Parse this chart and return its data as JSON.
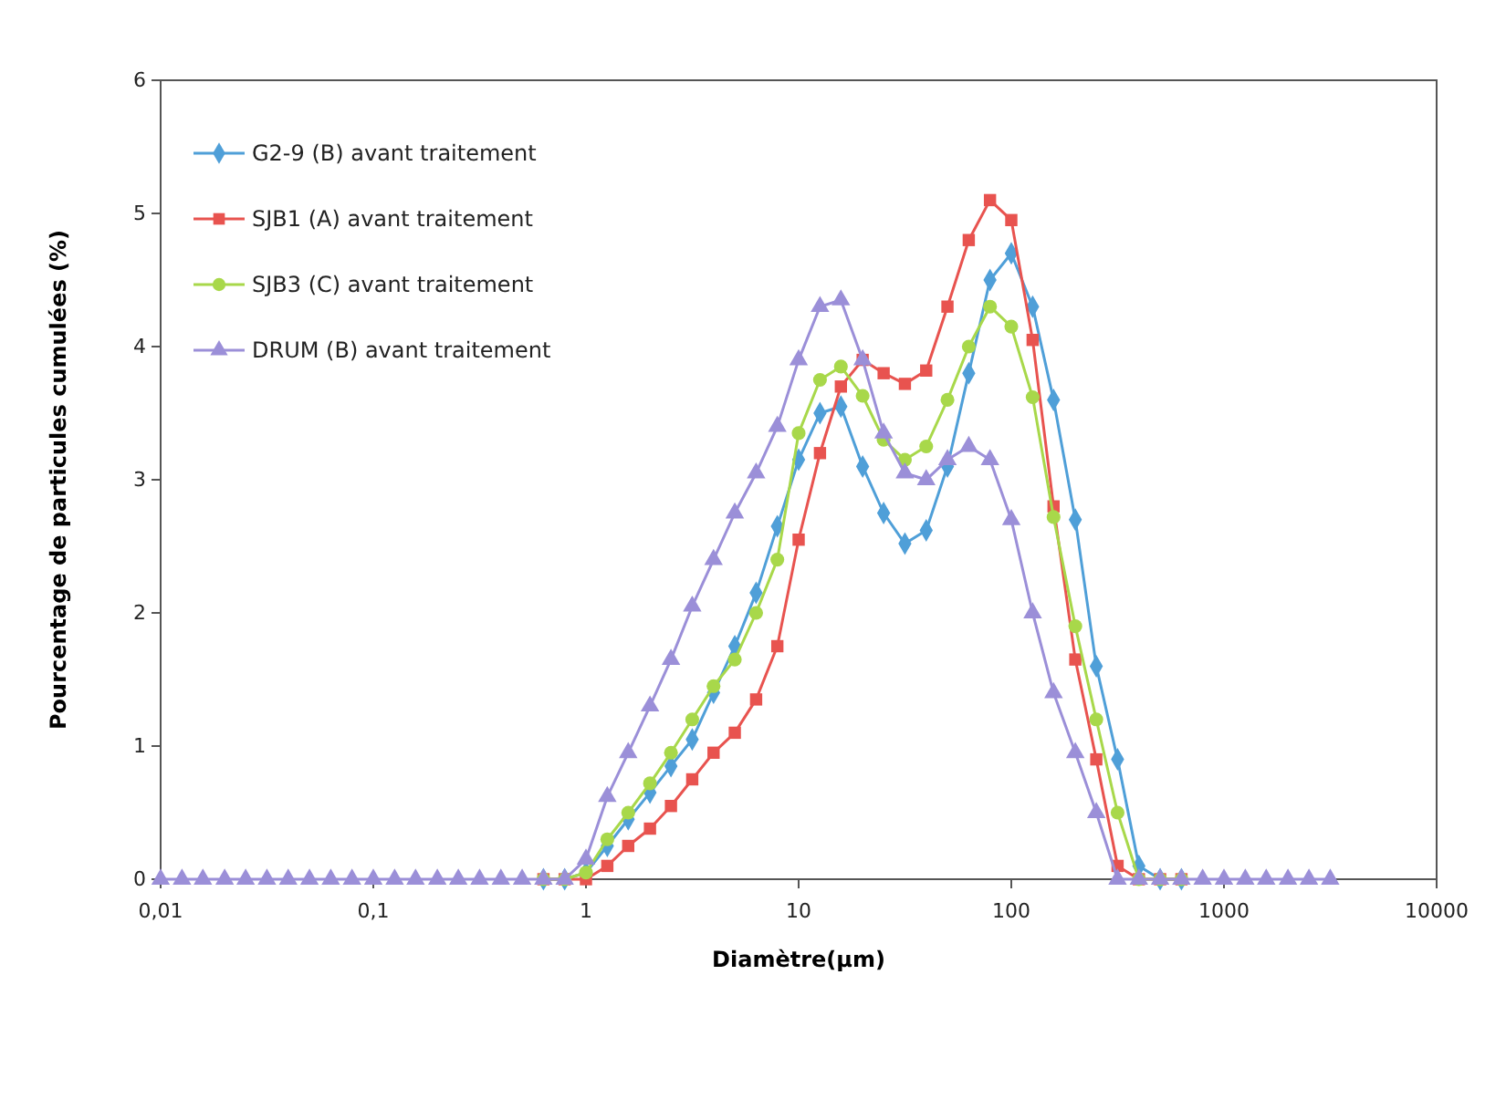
{
  "chart_data": {
    "type": "line",
    "xlabel": "Diamètre(μm)",
    "ylabel": "Pourcentage de particules cumulées (%)",
    "log": "x",
    "xlim": [
      0.01,
      10000
    ],
    "xticks": [
      {
        "value": 0.01,
        "label": "0,01"
      },
      {
        "value": 0.1,
        "label": "0,1"
      },
      1,
      10,
      100,
      1000,
      10000
    ],
    "ylim": [
      0,
      6
    ],
    "yticks": [
      0,
      1,
      2,
      3,
      4,
      5,
      6
    ],
    "grid": false,
    "legend": "top left",
    "line_style": "solid",
    "x": [
      0.01,
      0.0126,
      0.0158,
      0.02,
      0.0251,
      0.0316,
      0.0398,
      0.0501,
      0.0631,
      0.0794,
      0.1,
      0.126,
      0.158,
      0.2,
      0.251,
      0.316,
      0.398,
      0.501,
      0.631,
      0.794,
      1,
      1.26,
      1.58,
      2,
      2.51,
      3.16,
      3.98,
      5.01,
      6.31,
      7.94,
      10,
      12.6,
      15.8,
      20,
      25.1,
      31.6,
      39.8,
      50.1,
      63.1,
      79.4,
      100,
      126,
      158,
      200,
      251,
      316,
      398,
      501,
      631,
      794,
      1000,
      1260,
      1580,
      2000,
      2510,
      3160
    ],
    "series": [
      {
        "name": "G2-9 (B) avant traitement",
        "color": "#4f9fd8",
        "marker": "diamond",
        "values": [
          null,
          null,
          null,
          null,
          null,
          null,
          null,
          null,
          null,
          null,
          null,
          null,
          null,
          null,
          null,
          null,
          null,
          null,
          0,
          0,
          0.05,
          0.25,
          0.45,
          0.65,
          0.85,
          1.05,
          1.4,
          1.75,
          2.15,
          2.65,
          3.15,
          3.5,
          3.55,
          3.1,
          2.75,
          2.52,
          2.62,
          3.1,
          3.8,
          4.5,
          4.7,
          4.3,
          3.6,
          2.7,
          1.6,
          0.9,
          0.1,
          0,
          0,
          null,
          null,
          null,
          null,
          null,
          null,
          null
        ]
      },
      {
        "name": "SJB1 (A) avant traitement",
        "color": "#e8534f",
        "marker": "square",
        "values": [
          null,
          null,
          null,
          null,
          null,
          null,
          null,
          null,
          null,
          null,
          null,
          null,
          null,
          null,
          null,
          null,
          null,
          null,
          0,
          0,
          0,
          0.1,
          0.25,
          0.38,
          0.55,
          0.75,
          0.95,
          1.1,
          1.35,
          1.75,
          2.55,
          3.2,
          3.7,
          3.9,
          3.8,
          3.72,
          3.82,
          4.3,
          4.8,
          5.1,
          4.95,
          4.05,
          2.8,
          1.65,
          0.9,
          0.1,
          0,
          0,
          0,
          null,
          null,
          null,
          null,
          null,
          null,
          null
        ]
      },
      {
        "name": "SJB3 (C) avant traitement",
        "color": "#a8d84a",
        "marker": "circle",
        "values": [
          null,
          null,
          null,
          null,
          null,
          null,
          null,
          null,
          null,
          null,
          null,
          null,
          null,
          null,
          null,
          null,
          null,
          null,
          0,
          0,
          0.05,
          0.3,
          0.5,
          0.72,
          0.95,
          1.2,
          1.45,
          1.65,
          2.0,
          2.4,
          3.35,
          3.75,
          3.85,
          3.63,
          3.3,
          3.15,
          3.25,
          3.6,
          4.0,
          4.3,
          4.15,
          3.62,
          2.72,
          1.9,
          1.2,
          0.5,
          0,
          0,
          0,
          null,
          null,
          null,
          null,
          null,
          null,
          null
        ]
      },
      {
        "name": "DRUM (B) avant traitement",
        "color": "#9b8fd8",
        "marker": "triangle",
        "values": [
          0,
          0,
          0,
          0,
          0,
          0,
          0,
          0,
          0,
          0,
          0,
          0,
          0,
          0,
          0,
          0,
          0,
          0,
          0,
          0,
          0.15,
          0.62,
          0.95,
          1.3,
          1.65,
          2.05,
          2.4,
          2.75,
          3.05,
          3.4,
          3.9,
          4.3,
          4.35,
          3.9,
          3.35,
          3.05,
          3.0,
          3.15,
          3.25,
          3.15,
          2.7,
          2.0,
          1.4,
          0.95,
          0.5,
          0,
          0,
          0,
          0,
          0,
          0,
          0,
          0,
          0,
          0,
          0
        ]
      }
    ]
  }
}
